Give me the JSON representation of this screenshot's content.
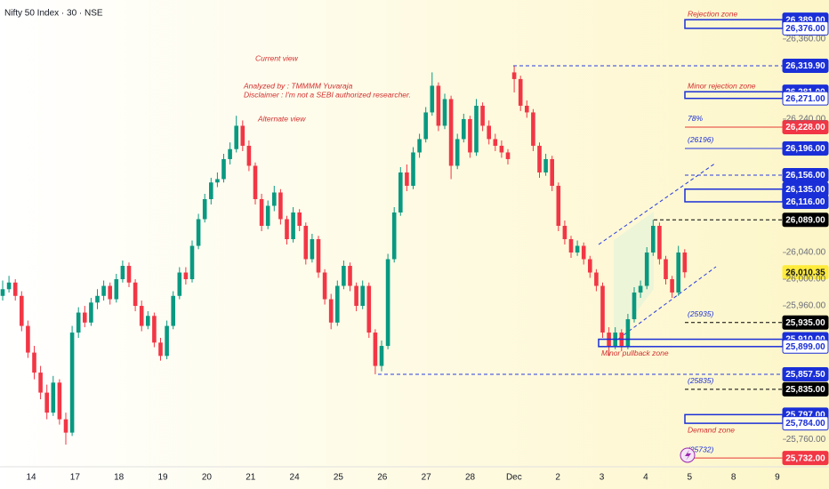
{
  "chart_data": {
    "type": "candlestick",
    "title": "Nifty 50 Index · 30 · NSE",
    "annotations": [
      "Current view",
      "Analyzed by : TMMMM Yuvaraja",
      "Disclaimer : I'm not a SEBI authorized researcher.",
      "Alternate view"
    ],
    "categories": [
      "14",
      "17",
      "18",
      "19",
      "20",
      "21",
      "24",
      "25",
      "26",
      "27",
      "28",
      "Dec",
      "2",
      "3",
      "4",
      "5",
      "8",
      "9"
    ],
    "up_color": "#089981",
    "down_color": "#f23645",
    "ylim": [
      25725.5,
      26418.5
    ],
    "yticks": [
      {
        "value": 26360,
        "label": "26,360.00"
      },
      {
        "value": 26240,
        "label": "26,240.00"
      },
      {
        "value": 26040,
        "label": "26,040.00"
      },
      {
        "value": 26000,
        "label": "26,000.00"
      },
      {
        "value": 25960,
        "label": "25,960.00"
      },
      {
        "value": 25760,
        "label": "25,760.00"
      }
    ],
    "candles": [
      [
        25975,
        25998,
        25968,
        25985
      ],
      [
        25985,
        26005,
        25980,
        25995
      ],
      [
        25995,
        26000,
        25968,
        25975
      ],
      [
        25975,
        25982,
        25922,
        25930
      ],
      [
        25930,
        25938,
        25882,
        25890
      ],
      [
        25890,
        25900,
        25850,
        25860
      ],
      [
        25860,
        25870,
        25820,
        25830
      ],
      [
        25830,
        25842,
        25790,
        25800
      ],
      [
        25800,
        25855,
        25795,
        25845
      ],
      [
        25845,
        25850,
        25782,
        25790
      ],
      [
        25790,
        25800,
        25752,
        25770
      ],
      [
        25770,
        25930,
        25765,
        25920
      ],
      [
        25920,
        25958,
        25912,
        25950
      ],
      [
        25950,
        25960,
        25928,
        25935
      ],
      [
        25935,
        25972,
        25930,
        25965
      ],
      [
        25965,
        25985,
        25955,
        25975
      ],
      [
        25975,
        25998,
        25968,
        25990
      ],
      [
        25990,
        25995,
        25962,
        25970
      ],
      [
        25970,
        26008,
        25965,
        26000
      ],
      [
        26000,
        26028,
        25995,
        26020
      ],
      [
        26020,
        26025,
        25988,
        25995
      ],
      [
        25995,
        26000,
        25952,
        25960
      ],
      [
        25960,
        25968,
        25922,
        25930
      ],
      [
        25930,
        25952,
        25925,
        25945
      ],
      [
        25945,
        25950,
        25898,
        25905
      ],
      [
        25905,
        25912,
        25878,
        25885
      ],
      [
        25885,
        25938,
        25880,
        25930
      ],
      [
        25930,
        25982,
        25925,
        25975
      ],
      [
        25975,
        26018,
        25970,
        26010
      ],
      [
        26010,
        26018,
        25992,
        26000
      ],
      [
        26000,
        26058,
        25995,
        26050
      ],
      [
        26050,
        26098,
        26045,
        26090
      ],
      [
        26090,
        26128,
        26085,
        26120
      ],
      [
        26120,
        26152,
        26112,
        26145
      ],
      [
        26145,
        26160,
        26138,
        26150
      ],
      [
        26150,
        26188,
        26145,
        26180
      ],
      [
        26180,
        26205,
        26172,
        26195
      ],
      [
        26195,
        26245,
        26190,
        26230
      ],
      [
        26230,
        26238,
        26192,
        26200
      ],
      [
        26200,
        26208,
        26162,
        26170
      ],
      [
        26170,
        26175,
        26112,
        26120
      ],
      [
        26120,
        26128,
        26072,
        26080
      ],
      [
        26080,
        26118,
        26075,
        26110
      ],
      [
        26110,
        26140,
        26102,
        26130
      ],
      [
        26130,
        26135,
        26082,
        26090
      ],
      [
        26090,
        26095,
        26052,
        26060
      ],
      [
        26060,
        26108,
        26055,
        26100
      ],
      [
        26100,
        26105,
        26072,
        26080
      ],
      [
        26080,
        26085,
        26022,
        26030
      ],
      [
        26030,
        26068,
        26025,
        26060
      ],
      [
        26060,
        26065,
        26002,
        26010
      ],
      [
        26010,
        26015,
        25962,
        25970
      ],
      [
        25970,
        25978,
        25925,
        25935
      ],
      [
        25935,
        25998,
        25930,
        25990
      ],
      [
        25990,
        26028,
        25985,
        26020
      ],
      [
        26020,
        26025,
        25982,
        25990
      ],
      [
        25990,
        25995,
        25952,
        25960
      ],
      [
        25960,
        25998,
        25955,
        25990
      ],
      [
        25990,
        25995,
        25912,
        25920
      ],
      [
        25920,
        25925,
        25857.5,
        25870
      ],
      [
        25870,
        25908,
        25862,
        25900
      ],
      [
        25900,
        26038,
        25895,
        26030
      ],
      [
        26030,
        26108,
        26025,
        26100
      ],
      [
        26100,
        26168,
        26095,
        26160
      ],
      [
        26160,
        26172,
        26132,
        26140
      ],
      [
        26140,
        26198,
        26135,
        26190
      ],
      [
        26190,
        26218,
        26182,
        26210
      ],
      [
        26210,
        26258,
        26205,
        26250
      ],
      [
        26250,
        26310,
        26245,
        26290
      ],
      [
        26290,
        26295,
        26222,
        26230
      ],
      [
        26230,
        26278,
        26225,
        26270
      ],
      [
        26270,
        26275,
        26150,
        26170
      ],
      [
        26170,
        26218,
        26165,
        26210
      ],
      [
        26210,
        26248,
        26205,
        26240
      ],
      [
        26240,
        26245,
        26182,
        26190
      ],
      [
        26190,
        26270,
        26185,
        26260
      ],
      [
        26260,
        26265,
        26222,
        26230
      ],
      [
        26230,
        26238,
        26202,
        26210
      ],
      [
        26210,
        26218,
        26192,
        26200
      ],
      [
        26200,
        26208,
        26182,
        26190
      ],
      [
        26190,
        26195,
        26172,
        26180
      ],
      [
        26310,
        26319.9,
        26280,
        26300
      ],
      [
        26300,
        26305,
        26252,
        26260
      ],
      [
        26260,
        26268,
        26242,
        26250
      ],
      [
        26250,
        26255,
        26192,
        26200
      ],
      [
        26200,
        26205,
        26152,
        26160
      ],
      [
        26160,
        26188,
        26155,
        26180
      ],
      [
        26180,
        26185,
        26132,
        26140
      ],
      [
        26140,
        26145,
        26072,
        26080
      ],
      [
        26080,
        26088,
        26052,
        26060
      ],
      [
        26060,
        26065,
        26032,
        26040
      ],
      [
        26040,
        26058,
        26035,
        26050
      ],
      [
        26050,
        26055,
        26022,
        26030
      ],
      [
        26030,
        26035,
        26002,
        26010
      ],
      [
        26010,
        26015,
        25982,
        25990
      ],
      [
        25990,
        25995,
        25912,
        25920
      ],
      [
        25920,
        25928,
        25885,
        25900
      ],
      [
        25900,
        25928,
        25895,
        25920
      ],
      [
        25920,
        25925,
        25892,
        25900
      ],
      [
        25900,
        25948,
        25895,
        25940
      ],
      [
        25940,
        25988,
        25935,
        25980
      ],
      [
        25980,
        25998,
        25972,
        25990
      ],
      [
        25990,
        26048,
        25985,
        26040
      ],
      [
        26040,
        26089,
        26035,
        26080
      ],
      [
        26080,
        26085,
        26022,
        26030
      ],
      [
        26030,
        26035,
        25992,
        26000
      ],
      [
        26000,
        26005,
        25972,
        25980
      ],
      [
        25980,
        26050,
        25975,
        26040
      ],
      [
        26040,
        26045,
        26002,
        26010.35
      ]
    ],
    "levels": [
      {
        "value": 26389,
        "label": "26,389.00",
        "style": "blue"
      },
      {
        "value": 26376,
        "label": "26,376.00",
        "style": "outline"
      },
      {
        "value": 26319.9,
        "label": "26,319.90",
        "style": "blue",
        "line": "dashed"
      },
      {
        "value": 26281,
        "label": "26,281.00",
        "style": "blue"
      },
      {
        "value": 26271,
        "label": "26,271.00",
        "style": "outline"
      },
      {
        "value": 26228,
        "label": "26,228.00",
        "style": "red",
        "line": "solid",
        "note": "78%"
      },
      {
        "value": 26196,
        "label": "26,196.00",
        "style": "blue",
        "line": "solid",
        "note": "(26196)"
      },
      {
        "value": 26156,
        "label": "26,156.00",
        "style": "blue",
        "line": "dashed"
      },
      {
        "value": 26135,
        "label": "26,135.00",
        "style": "blue"
      },
      {
        "value": 26116,
        "label": "26,116.00",
        "style": "blue"
      },
      {
        "value": 26089,
        "label": "26,089.00",
        "style": "black",
        "line": "dashed"
      },
      {
        "value": 26010.35,
        "label": "26,010.35",
        "style": "yellow"
      },
      {
        "value": 25935,
        "label": "25,935.00",
        "style": "black",
        "line": "dashed",
        "note": "(25935)"
      },
      {
        "value": 25910,
        "label": "25,910.00",
        "style": "blue"
      },
      {
        "value": 25899,
        "label": "25,899.00",
        "style": "outline"
      },
      {
        "value": 25857.5,
        "label": "25,857.50",
        "style": "blue",
        "line": "dashed"
      },
      {
        "value": 25835,
        "label": "25,835.00",
        "style": "black",
        "line": "dashed",
        "note": "(25835)"
      },
      {
        "value": 25797,
        "label": "25,797.00",
        "style": "blue"
      },
      {
        "value": 25784,
        "label": "25,784.00",
        "style": "outline"
      },
      {
        "value": 25732,
        "label": "25,732.00",
        "style": "red",
        "line": "solid",
        "note": "(25732)"
      }
    ],
    "zones": [
      {
        "label": "Rejection zone",
        "range": [
          26389,
          26376
        ]
      },
      {
        "label": "Minor rejection zone",
        "range": [
          26281,
          26271
        ]
      },
      {
        "range": [
          26135,
          26116
        ]
      },
      {
        "label": "Minor pullback zone",
        "range": [
          25910,
          25899
        ]
      },
      {
        "label": "Demand zone",
        "range": [
          25797,
          25784
        ]
      }
    ]
  }
}
